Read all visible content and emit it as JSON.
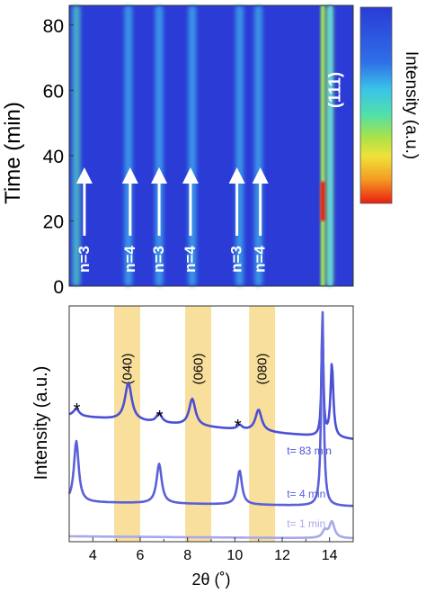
{
  "chart_data": [
    {
      "type": "heatmap",
      "ylabel": "Time (min)",
      "ylim": [
        0,
        86
      ],
      "yticks": [
        0,
        20,
        40,
        60,
        80
      ],
      "colorbar_label": "Intensity (a.u.)",
      "colormap": [
        "#2a3bd6",
        "#2f6fe8",
        "#39c4e8",
        "#52e0a8",
        "#a8e24a",
        "#f0e23a",
        "#f59a22",
        "#e81d12"
      ],
      "background_color": "#2a3bd6",
      "streaks": [
        {
          "label": "n=3",
          "x": 3.3
        },
        {
          "label": "n=4",
          "x": 5.5
        },
        {
          "label": "n=3",
          "x": 6.8
        },
        {
          "label": "n=4",
          "x": 8.2
        },
        {
          "label": "n=3",
          "x": 10.2
        },
        {
          "label": "n=4",
          "x": 11.0
        },
        {
          "label": "(111)",
          "x": 14.0
        }
      ]
    },
    {
      "type": "line",
      "xlabel": "2θ (˚)",
      "ylabel": "Intensity (a.u.)",
      "xlim": [
        3,
        15
      ],
      "xticks": [
        4,
        6,
        8,
        10,
        12,
        14
      ],
      "highlight_bands": [
        {
          "label": "(040)",
          "x0": 4.9,
          "x1": 6.0
        },
        {
          "label": "(060)",
          "x0": 7.9,
          "x1": 9.0
        },
        {
          "label": "(080)",
          "x0": 10.6,
          "x1": 11.7
        }
      ],
      "asterisks": [
        {
          "text": "*",
          "x": 3.4
        },
        {
          "text": "*",
          "x": 6.9
        },
        {
          "text": "*",
          "x": 10.2
        }
      ],
      "series": [
        {
          "name": "t= 83 min",
          "color": "#4a4fd6",
          "peaks": [
            3.3,
            5.5,
            6.8,
            8.2,
            10.2,
            11.0,
            13.7,
            14.1
          ]
        },
        {
          "name": "t= 4 min",
          "color": "#5a60d8",
          "peaks": [
            3.3,
            6.8,
            10.2,
            13.7
          ]
        },
        {
          "name": "t= 1 min",
          "color": "#a8a8ea",
          "peaks": [
            13.8,
            14.1
          ]
        }
      ]
    }
  ]
}
